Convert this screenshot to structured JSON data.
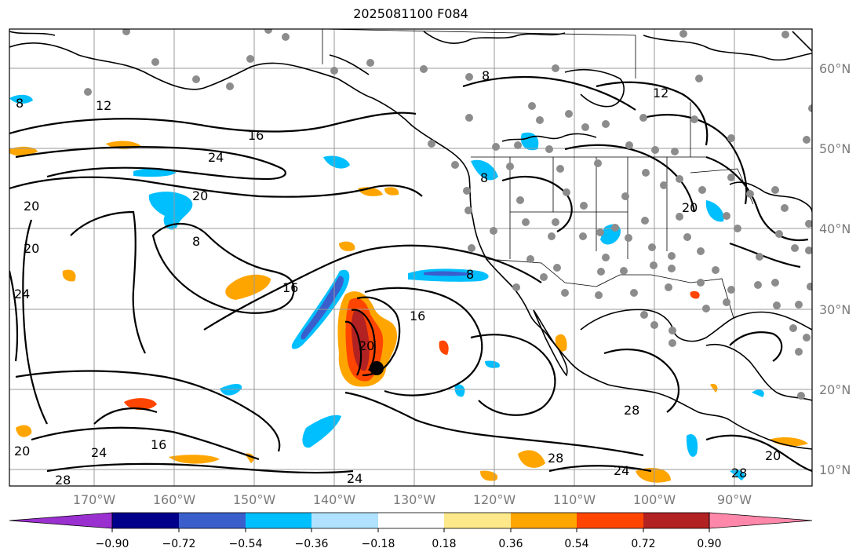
{
  "title": "2025081100 F084",
  "lon_labels": [
    "170°W",
    "160°W",
    "150°W",
    "140°W",
    "130°W",
    "120°W",
    "110°W",
    "100°W",
    "90°W"
  ],
  "lat_labels": [
    "60°N",
    "50°N",
    "40°N",
    "30°N",
    "20°N",
    "10°N"
  ],
  "contour_labels": [
    "8",
    "12",
    "16",
    "24",
    "20",
    "20",
    "8",
    "16",
    "20",
    "16",
    "20",
    "8",
    "12",
    "8",
    "20",
    "8",
    "24",
    "16",
    "24",
    "24",
    "28",
    "28",
    "20",
    "28",
    "24",
    "28",
    "20"
  ],
  "colorbar": {
    "ticks": [
      "−0.90",
      "−0.72",
      "−0.54",
      "−0.36",
      "−0.18",
      "0.18",
      "0.36",
      "0.54",
      "0.72",
      "0.90"
    ],
    "colors": [
      "#9b30d0",
      "#00008b",
      "#3a5fcd",
      "#00bfff",
      "#b0e2ff",
      "#ffffff",
      "#fde98a",
      "#ffa500",
      "#ff4500",
      "#b22222",
      "#ff88aa"
    ]
  },
  "marker_color": "#000000",
  "station_color": "#8c8c8c"
}
